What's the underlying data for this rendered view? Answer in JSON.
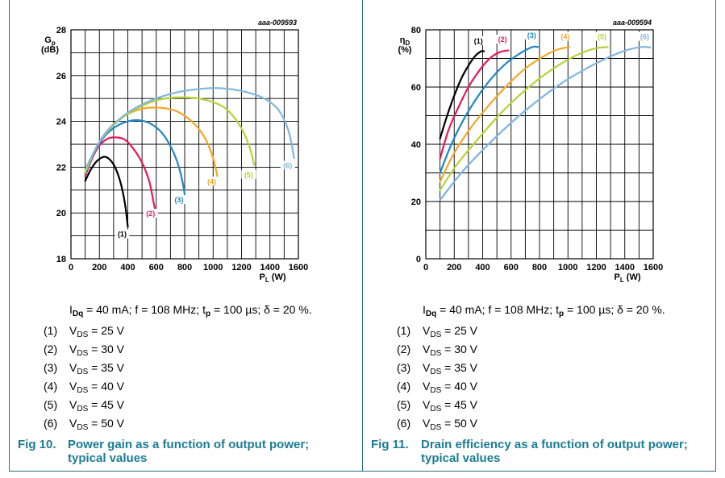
{
  "conditions": {
    "idq_sym": "I",
    "idq_sub": "Dq",
    "part1": " = 40 mA; f = 108 MHz; t",
    "tp_sub": "p",
    "part2": " = 100 µs; δ = 20 %."
  },
  "legend_items": [
    {
      "num": "(1)",
      "label": "V",
      "sub": "DS",
      "value": " = 25 V"
    },
    {
      "num": "(2)",
      "label": "V",
      "sub": "DS",
      "value": " = 30 V"
    },
    {
      "num": "(3)",
      "label": "V",
      "sub": "DS",
      "value": " = 35 V"
    },
    {
      "num": "(4)",
      "label": "V",
      "sub": "DS",
      "value": " = 40 V"
    },
    {
      "num": "(5)",
      "label": "V",
      "sub": "DS",
      "value": " = 45 V"
    },
    {
      "num": "(6)",
      "label": "V",
      "sub": "DS",
      "value": " = 50 V"
    }
  ],
  "fig10": {
    "number": "Fig 10.",
    "line1": "Power gain as a function of output power;",
    "line2": "typical values"
  },
  "fig11": {
    "number": "Fig 11.",
    "line1": "Drain efficiency as a function of output power;",
    "line2": "typical values"
  },
  "colors": {
    "frame": "#2f6f80",
    "caption": "#1a7c95"
  },
  "chart_data": [
    {
      "type": "line",
      "id": "aaa-009593",
      "ylabel": "Gp",
      "ylabel_sub": "p",
      "yunit": "(dB)",
      "xlabel": "PL",
      "xunit": "(W)",
      "xlim": [
        0,
        1600
      ],
      "ylim": [
        18,
        28
      ],
      "xticks": [
        0,
        200,
        400,
        600,
        800,
        1000,
        1200,
        1400,
        1600
      ],
      "yticks": [
        18,
        20,
        22,
        24,
        26,
        28
      ],
      "grid": true,
      "series": [
        {
          "name": "(1)",
          "color": "#000000",
          "points": [
            [
              100,
              21.4
            ],
            [
              140,
              21.9
            ],
            [
              180,
              22.25
            ],
            [
              230,
              22.45
            ],
            [
              270,
              22.35
            ],
            [
              310,
              22.0
            ],
            [
              350,
              21.3
            ],
            [
              380,
              20.4
            ],
            [
              400,
              19.4
            ]
          ],
          "label_at": [
            360,
            19.0
          ]
        },
        {
          "name": "(2)",
          "color": "#e6195a",
          "points": [
            [
              100,
              21.6
            ],
            [
              150,
              22.4
            ],
            [
              200,
              22.95
            ],
            [
              260,
              23.25
            ],
            [
              320,
              23.3
            ],
            [
              380,
              23.2
            ],
            [
              440,
              22.8
            ],
            [
              500,
              22.2
            ],
            [
              550,
              21.4
            ],
            [
              580,
              20.5
            ],
            [
              590,
              20.2
            ]
          ],
          "label_at": [
            560,
            19.9
          ]
        },
        {
          "name": "(3)",
          "color": "#1f86c8",
          "points": [
            [
              100,
              21.7
            ],
            [
              160,
              22.6
            ],
            [
              230,
              23.3
            ],
            [
              310,
              23.75
            ],
            [
              400,
              24.0
            ],
            [
              480,
              24.05
            ],
            [
              560,
              23.9
            ],
            [
              640,
              23.5
            ],
            [
              710,
              22.8
            ],
            [
              760,
              22.0
            ],
            [
              790,
              21.2
            ],
            [
              800,
              20.8
            ]
          ],
          "label_at": [
            760,
            20.5
          ]
        },
        {
          "name": "(4)",
          "color": "#f5a623",
          "points": [
            [
              100,
              21.75
            ],
            [
              180,
              22.9
            ],
            [
              270,
              23.7
            ],
            [
              380,
              24.25
            ],
            [
              500,
              24.55
            ],
            [
              620,
              24.6
            ],
            [
              740,
              24.45
            ],
            [
              850,
              24.0
            ],
            [
              940,
              23.3
            ],
            [
              1000,
              22.4
            ],
            [
              1030,
              21.6
            ]
          ],
          "label_at": [
            990,
            21.3
          ]
        },
        {
          "name": "(5)",
          "color": "#b5d334",
          "points": [
            [
              100,
              21.8
            ],
            [
              200,
              23.1
            ],
            [
              320,
              23.95
            ],
            [
              460,
              24.55
            ],
            [
              620,
              24.95
            ],
            [
              780,
              25.05
            ],
            [
              940,
              24.95
            ],
            [
              1080,
              24.6
            ],
            [
              1180,
              23.9
            ],
            [
              1250,
              23.0
            ],
            [
              1290,
              22.1
            ]
          ],
          "label_at": [
            1250,
            21.6
          ]
        },
        {
          "name": "(6)",
          "color": "#7eb6e0",
          "points": [
            [
              100,
              21.9
            ],
            [
              220,
              23.3
            ],
            [
              360,
              24.2
            ],
            [
              520,
              24.8
            ],
            [
              700,
              25.2
            ],
            [
              880,
              25.4
            ],
            [
              1050,
              25.45
            ],
            [
              1220,
              25.3
            ],
            [
              1360,
              25.0
            ],
            [
              1460,
              24.5
            ],
            [
              1530,
              23.6
            ],
            [
              1570,
              22.4
            ]
          ],
          "label_at": [
            1525,
            22.0
          ]
        }
      ]
    },
    {
      "type": "line",
      "id": "aaa-009594",
      "ylabel": "ηD",
      "ylabel_sub": "D",
      "yunit": "(%)",
      "xlabel": "PL",
      "xunit": "(W)",
      "xlim": [
        0,
        1600
      ],
      "ylim": [
        0,
        80
      ],
      "xticks": [
        0,
        200,
        400,
        600,
        800,
        1000,
        1200,
        1400,
        1600
      ],
      "yticks": [
        0,
        20,
        40,
        60,
        80
      ],
      "grid": true,
      "series": [
        {
          "name": "(1)",
          "color": "#000000",
          "points": [
            [
              100,
              42
            ],
            [
              150,
              50
            ],
            [
              200,
              57
            ],
            [
              250,
              63
            ],
            [
              300,
              67.5
            ],
            [
              350,
              71
            ],
            [
              390,
              72.5
            ],
            [
              410,
              72.5
            ]
          ],
          "label_at": [
            370,
            75.5
          ]
        },
        {
          "name": "(2)",
          "color": "#e6195a",
          "points": [
            [
              100,
              35
            ],
            [
              160,
              45
            ],
            [
              230,
              53
            ],
            [
              300,
              60
            ],
            [
              380,
              66
            ],
            [
              450,
              70
            ],
            [
              520,
              72.2
            ],
            [
              580,
              72.8
            ]
          ],
          "label_at": [
            540,
            76
          ]
        },
        {
          "name": "(3)",
          "color": "#1f86c8",
          "points": [
            [
              100,
              30
            ],
            [
              180,
              40
            ],
            [
              270,
              49
            ],
            [
              370,
              57
            ],
            [
              470,
              63.5
            ],
            [
              570,
              68.5
            ],
            [
              670,
              72
            ],
            [
              750,
              74
            ],
            [
              790,
              74
            ]
          ],
          "label_at": [
            745,
            77.5
          ]
        },
        {
          "name": "(4)",
          "color": "#f5a623",
          "points": [
            [
              100,
              27
            ],
            [
              200,
              37
            ],
            [
              320,
              46
            ],
            [
              450,
              54
            ],
            [
              580,
              61
            ],
            [
              700,
              66.5
            ],
            [
              820,
              70.5
            ],
            [
              920,
              73
            ],
            [
              1010,
              74
            ]
          ],
          "label_at": [
            980,
            77
          ]
        },
        {
          "name": "(5)",
          "color": "#b5d334",
          "points": [
            [
              100,
              24
            ],
            [
              220,
              33
            ],
            [
              370,
              42
            ],
            [
              530,
              51
            ],
            [
              690,
              58.5
            ],
            [
              840,
              64.5
            ],
            [
              980,
              69
            ],
            [
              1100,
              72
            ],
            [
              1200,
              73.6
            ],
            [
              1280,
              74
            ]
          ],
          "label_at": [
            1240,
            77
          ]
        },
        {
          "name": "(6)",
          "color": "#7eb6e0",
          "points": [
            [
              100,
              20.5
            ],
            [
              250,
              30
            ],
            [
              420,
              39
            ],
            [
              600,
              47.5
            ],
            [
              780,
              55
            ],
            [
              960,
              61.5
            ],
            [
              1130,
              66.5
            ],
            [
              1290,
              70.5
            ],
            [
              1420,
              73
            ],
            [
              1520,
              74
            ],
            [
              1580,
              73.8
            ]
          ],
          "label_at": [
            1540,
            77
          ]
        }
      ]
    }
  ]
}
